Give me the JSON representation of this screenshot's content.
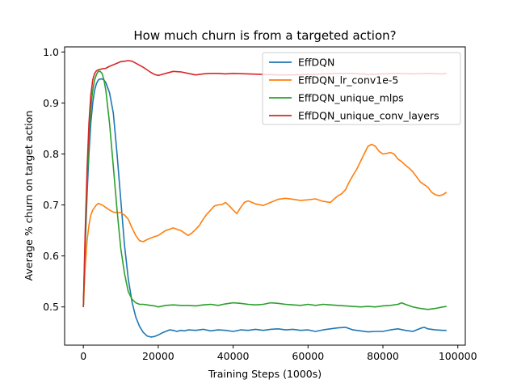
{
  "chart_data": {
    "type": "line",
    "title": "How much churn is from a targeted action?",
    "xlabel": "Training Steps (1000s)",
    "ylabel": "Average % churn on target action",
    "xlim": [
      -5000,
      102000
    ],
    "ylim": [
      0.425,
      1.01
    ],
    "xticks": [
      0,
      20000,
      40000,
      60000,
      80000,
      100000
    ],
    "xtick_labels": [
      "0",
      "20000",
      "40000",
      "60000",
      "80000",
      "100000"
    ],
    "yticks": [
      0.5,
      0.6,
      0.7,
      0.8,
      0.9,
      1.0
    ],
    "ytick_labels": [
      "0.5",
      "0.6",
      "0.7",
      "0.8",
      "0.9",
      "1.0"
    ],
    "grid": false,
    "legend_position": "top-right",
    "series": [
      {
        "name": "EffDQN",
        "color": "#1f77b4",
        "x": [
          0,
          500,
          1000,
          1500,
          2000,
          2500,
          3000,
          3500,
          4000,
          4500,
          5000,
          5500,
          6000,
          7000,
          8000,
          9000,
          10000,
          11000,
          12000,
          13000,
          14000,
          15000,
          16000,
          17000,
          18000,
          19000,
          20000,
          21000,
          22000,
          23000,
          24000,
          25000,
          26000,
          27000,
          28000,
          30000,
          32000,
          34000,
          36000,
          38000,
          40000,
          42000,
          44000,
          46000,
          48000,
          50000,
          52000,
          54000,
          56000,
          58000,
          60000,
          62000,
          64000,
          66000,
          68000,
          70000,
          72000,
          74000,
          76000,
          78000,
          80000,
          82000,
          84000,
          86000,
          88000,
          90000,
          91000,
          92000,
          94000,
          96000,
          97000
        ],
        "y": [
          0.5,
          0.62,
          0.72,
          0.8,
          0.86,
          0.9,
          0.925,
          0.938,
          0.945,
          0.947,
          0.947,
          0.945,
          0.94,
          0.92,
          0.88,
          0.8,
          0.71,
          0.62,
          0.555,
          0.51,
          0.48,
          0.462,
          0.45,
          0.443,
          0.441,
          0.442,
          0.445,
          0.449,
          0.452,
          0.455,
          0.454,
          0.452,
          0.454,
          0.453,
          0.455,
          0.454,
          0.456,
          0.453,
          0.455,
          0.454,
          0.452,
          0.455,
          0.454,
          0.456,
          0.454,
          0.456,
          0.457,
          0.455,
          0.456,
          0.454,
          0.455,
          0.452,
          0.455,
          0.457,
          0.459,
          0.46,
          0.455,
          0.453,
          0.451,
          0.452,
          0.452,
          0.455,
          0.457,
          0.454,
          0.452,
          0.458,
          0.46,
          0.457,
          0.455,
          0.454,
          0.454
        ]
      },
      {
        "name": "EffDQN_lr_conv1e-5",
        "color": "#ff7f0e",
        "x": [
          0,
          500,
          1000,
          1500,
          2000,
          2500,
          3000,
          3500,
          4000,
          5000,
          6000,
          7000,
          8000,
          9000,
          10000,
          11000,
          12000,
          13000,
          14000,
          15000,
          16000,
          17000,
          18000,
          19000,
          20000,
          21000,
          22000,
          23000,
          24000,
          25000,
          26000,
          27000,
          28000,
          29000,
          30000,
          31000,
          32000,
          33000,
          34000,
          35000,
          36000,
          37000,
          38000,
          39000,
          40000,
          41000,
          42000,
          43000,
          44000,
          46000,
          48000,
          50000,
          52000,
          54000,
          56000,
          58000,
          60000,
          62000,
          64000,
          66000,
          67000,
          68000,
          69000,
          70000,
          71000,
          72000,
          73000,
          74000,
          75000,
          76000,
          77000,
          78000,
          79000,
          80000,
          81000,
          82000,
          83000,
          84000,
          85000,
          86000,
          87000,
          88000,
          89000,
          90000,
          91000,
          92000,
          93000,
          94000,
          95000,
          96000,
          97000
        ],
        "y": [
          0.5,
          0.58,
          0.63,
          0.66,
          0.68,
          0.69,
          0.695,
          0.7,
          0.703,
          0.7,
          0.695,
          0.69,
          0.686,
          0.685,
          0.685,
          0.68,
          0.672,
          0.655,
          0.64,
          0.63,
          0.628,
          0.632,
          0.635,
          0.638,
          0.64,
          0.645,
          0.65,
          0.652,
          0.655,
          0.652,
          0.65,
          0.645,
          0.64,
          0.645,
          0.652,
          0.66,
          0.672,
          0.682,
          0.69,
          0.698,
          0.7,
          0.701,
          0.705,
          0.698,
          0.69,
          0.683,
          0.695,
          0.705,
          0.708,
          0.702,
          0.699,
          0.705,
          0.711,
          0.713,
          0.711,
          0.709,
          0.71,
          0.712,
          0.707,
          0.705,
          0.712,
          0.718,
          0.722,
          0.73,
          0.745,
          0.758,
          0.77,
          0.785,
          0.8,
          0.815,
          0.819,
          0.815,
          0.805,
          0.8,
          0.801,
          0.803,
          0.8,
          0.79,
          0.785,
          0.778,
          0.772,
          0.765,
          0.755,
          0.745,
          0.74,
          0.735,
          0.725,
          0.72,
          0.718,
          0.72,
          0.725
        ]
      },
      {
        "name": "EffDQN_unique_mlps",
        "color": "#2ca02c",
        "x": [
          0,
          500,
          1000,
          1500,
          2000,
          2500,
          3000,
          3500,
          4000,
          4500,
          5000,
          5500,
          6000,
          7000,
          8000,
          9000,
          10000,
          11000,
          12000,
          13000,
          14000,
          15000,
          16000,
          17000,
          18000,
          19000,
          20000,
          22000,
          24000,
          26000,
          28000,
          30000,
          32000,
          34000,
          36000,
          38000,
          40000,
          42000,
          44000,
          46000,
          48000,
          50000,
          52000,
          54000,
          56000,
          58000,
          60000,
          62000,
          64000,
          66000,
          68000,
          70000,
          72000,
          74000,
          76000,
          78000,
          80000,
          82000,
          84000,
          85000,
          86000,
          88000,
          90000,
          92000,
          94000,
          96000,
          97000
        ],
        "y": [
          0.5,
          0.63,
          0.74,
          0.83,
          0.89,
          0.925,
          0.945,
          0.956,
          0.962,
          0.962,
          0.958,
          0.945,
          0.925,
          0.86,
          0.775,
          0.69,
          0.615,
          0.565,
          0.53,
          0.515,
          0.508,
          0.505,
          0.505,
          0.504,
          0.503,
          0.502,
          0.5,
          0.503,
          0.504,
          0.503,
          0.503,
          0.502,
          0.504,
          0.505,
          0.503,
          0.506,
          0.508,
          0.507,
          0.505,
          0.504,
          0.505,
          0.508,
          0.507,
          0.505,
          0.504,
          0.503,
          0.505,
          0.503,
          0.505,
          0.504,
          0.503,
          0.502,
          0.501,
          0.5,
          0.501,
          0.5,
          0.502,
          0.503,
          0.505,
          0.508,
          0.505,
          0.5,
          0.497,
          0.495,
          0.497,
          0.5,
          0.501
        ]
      },
      {
        "name": "EffDQN_unique_conv_layers",
        "color": "#d62728",
        "x": [
          0,
          500,
          1000,
          1500,
          2000,
          2500,
          3000,
          3500,
          4000,
          4500,
          5000,
          6000,
          7000,
          8000,
          9000,
          10000,
          11000,
          12000,
          13000,
          14000,
          15000,
          16000,
          17000,
          18000,
          19000,
          20000,
          21000,
          22000,
          24000,
          26000,
          28000,
          30000,
          32000,
          34000,
          36000,
          38000,
          40000,
          44000,
          48000,
          52000,
          56000,
          60000,
          64000,
          68000,
          72000,
          76000,
          80000,
          84000,
          88000,
          92000,
          96000,
          97000
        ],
        "y": [
          0.5,
          0.65,
          0.77,
          0.86,
          0.915,
          0.945,
          0.958,
          0.963,
          0.965,
          0.966,
          0.967,
          0.968,
          0.972,
          0.975,
          0.978,
          0.981,
          0.982,
          0.983,
          0.982,
          0.978,
          0.974,
          0.97,
          0.965,
          0.96,
          0.956,
          0.954,
          0.956,
          0.958,
          0.962,
          0.961,
          0.958,
          0.955,
          0.957,
          0.958,
          0.958,
          0.957,
          0.958,
          0.957,
          0.956,
          0.955,
          0.955,
          0.956,
          0.957,
          0.958,
          0.958,
          0.956,
          0.957,
          0.958,
          0.957,
          0.958,
          0.957,
          0.958
        ]
      }
    ]
  }
}
